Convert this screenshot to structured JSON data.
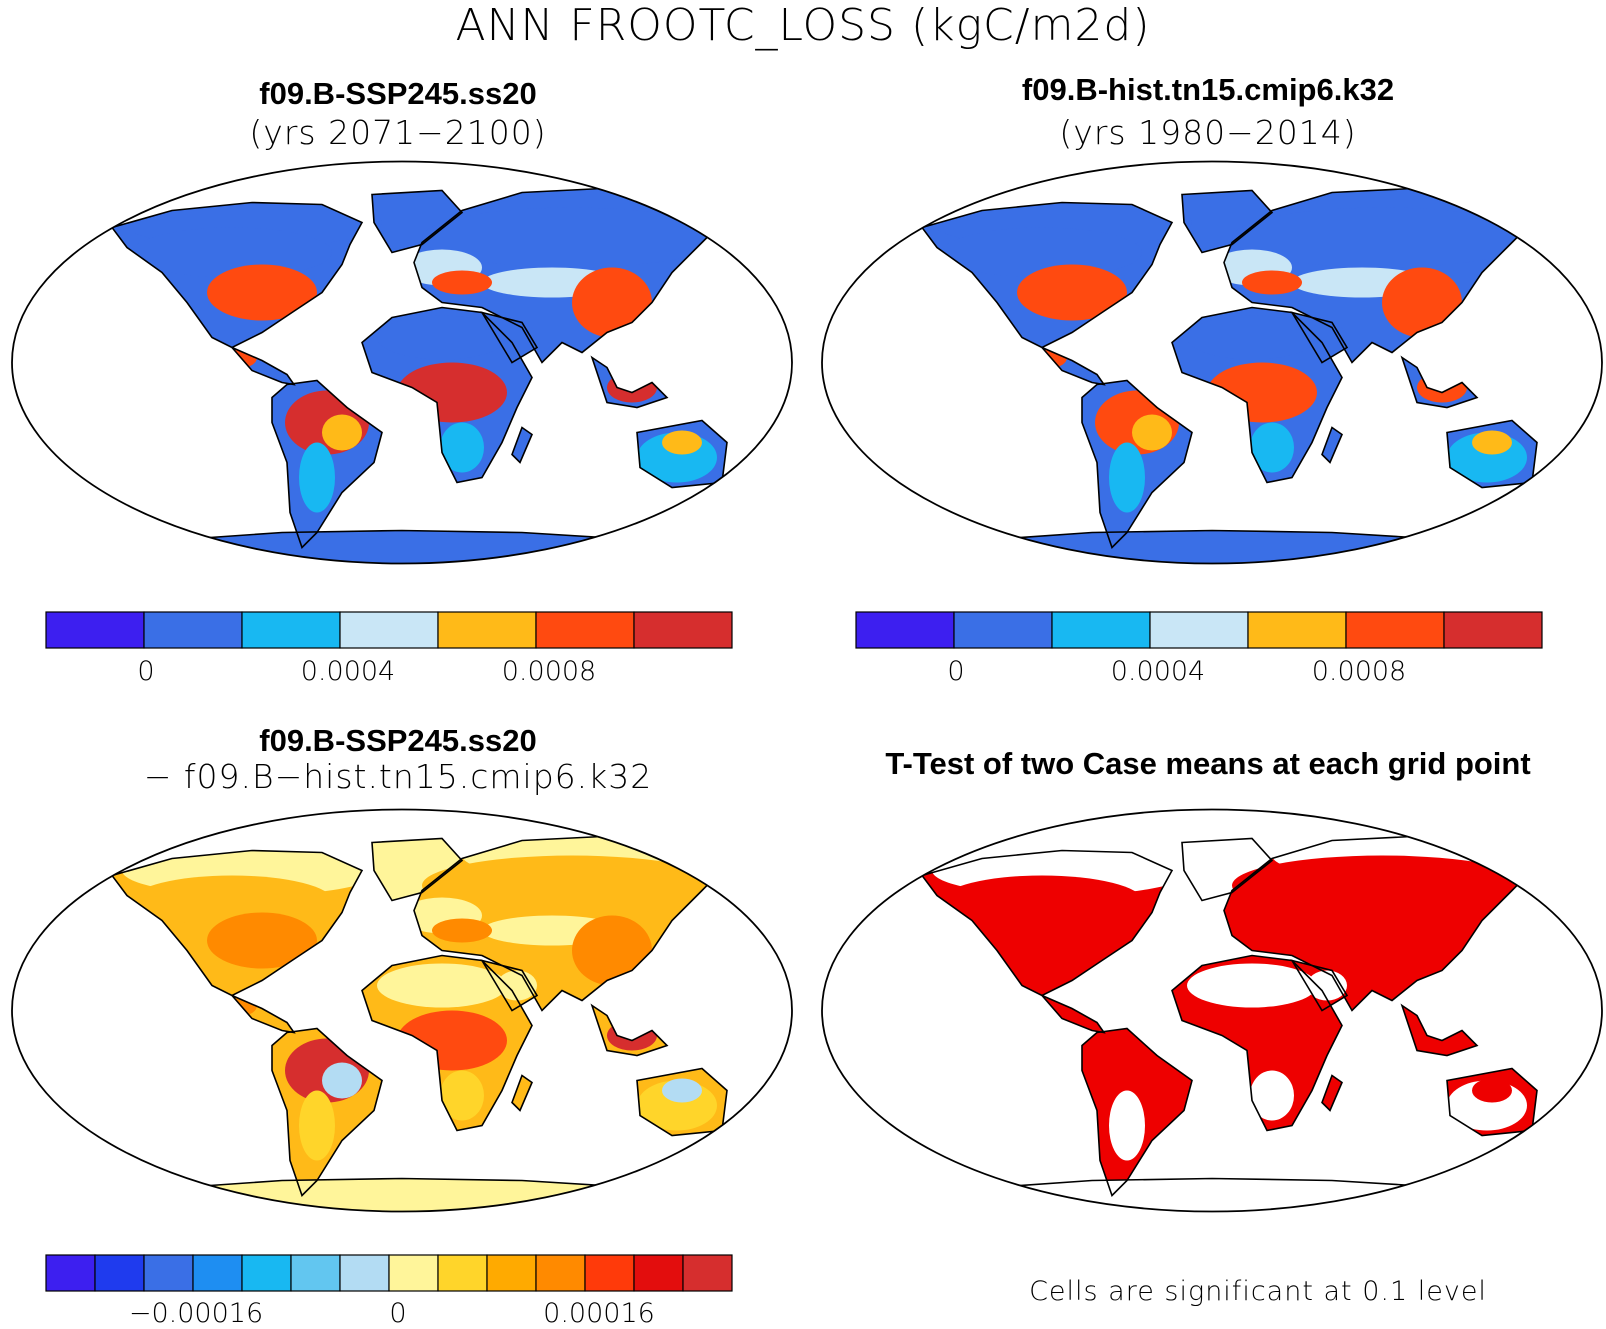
{
  "figure": {
    "title": "ANN FROOTC_LOSS (kgC/m2d)"
  },
  "panels": {
    "top_left": {
      "case": "f09.B-SSP245.ss20",
      "years": "(yrs 2071−2100)",
      "palette": {
        "ocean": "#ffffff",
        "polar": "#3a6fe6",
        "boreal": "#3a6fe6",
        "temperate": "#c9e6f6",
        "warm": "#ff4a10",
        "tropical": "#d62e2e",
        "arid": "#3a6fe6",
        "savanna": "#d62e2e",
        "mid": "#18b8f2",
        "highlight": "#ffba18"
      }
    },
    "top_right": {
      "case": "f09.B-hist.tn15.cmip6.k32",
      "years": "(yrs 1980−2014)",
      "palette": {
        "ocean": "#ffffff",
        "polar": "#3a6fe6",
        "boreal": "#3a6fe6",
        "temperate": "#c9e6f6",
        "warm": "#ff4a10",
        "tropical": "#ff4a10",
        "arid": "#3a6fe6",
        "savanna": "#ff4a10",
        "mid": "#18b8f2",
        "highlight": "#ffba18"
      }
    },
    "bottom_left": {
      "case": "f09.B-SSP245.ss20",
      "subtitle": "− f09.B−hist.tn15.cmip6.k32",
      "palette": {
        "ocean": "#ffffff",
        "polar": "#fff59a",
        "boreal": "#ffba18",
        "temperate": "#fff59a",
        "warm": "#ff8a00",
        "tropical": "#d62e2e",
        "arid": "#fff59a",
        "savanna": "#ff4a10",
        "mid": "#ffd52a",
        "highlight": "#b3dcf3"
      }
    },
    "bottom_right": {
      "title": "T-Test of two Case means at each grid point",
      "note": "Cells are significant at 0.1 level",
      "palette": {
        "ocean": "#ffffff",
        "polar": "#ffffff",
        "boreal": "#ee0000",
        "temperate": "#ee0000",
        "warm": "#ee0000",
        "tropical": "#ee0000",
        "arid": "#ffffff",
        "savanna": "#ee0000",
        "mid": "#ffffff",
        "highlight": "#ee0000"
      }
    }
  },
  "colorbars": {
    "top_left": {
      "colors": [
        "#3d1ff0",
        "#3a6fe6",
        "#18b8f2",
        "#c9e6f6",
        "#ffba18",
        "#ff4a10",
        "#d62e2e"
      ],
      "ticks": [
        "0",
        "0.0004",
        "0.0008"
      ]
    },
    "top_right": {
      "colors": [
        "#3d1ff0",
        "#3a6fe6",
        "#18b8f2",
        "#c9e6f6",
        "#ffba18",
        "#ff4a10",
        "#d62e2e"
      ],
      "ticks": [
        "0",
        "0.0004",
        "0.0008"
      ]
    },
    "bottom_left": {
      "colors": [
        "#3d1ff0",
        "#1f3bee",
        "#3a6fe6",
        "#1e8ef2",
        "#18b8f2",
        "#62c6f0",
        "#b3dcf3",
        "#fff59a",
        "#ffd52a",
        "#ffaa00",
        "#ff8a00",
        "#ff3a0a",
        "#e30d0d",
        "#d62e2e"
      ],
      "ticks": [
        "−0.00016",
        "0",
        "0.00016"
      ]
    }
  }
}
